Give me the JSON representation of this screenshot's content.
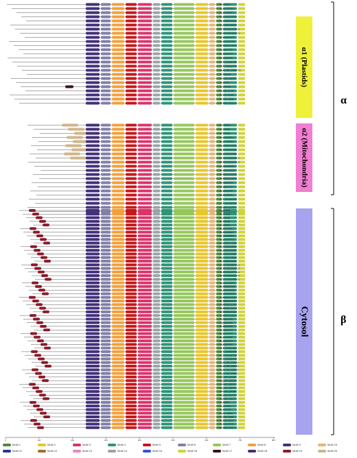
{
  "groups": [
    {
      "key": "plastids",
      "label": "α1 (Plastids)",
      "box_color": "#eef03a",
      "genes": [
        "At5G22510",
        "Eucgr.G02708.1",
        "Eucgr.J00957.1",
        "Potri.010G230100",
        "Potri.008G031100",
        "Potri.004G199000",
        "GSVIVT01014720001",
        "GSVIVT01021374001",
        "Solyc11g007270",
        "Solyc11g067050",
        "GRMZM2G044945",
        "Sb09g027050",
        "Bradi3g56070",
        "Bradi3g56080",
        "LOC_Os02g22490",
        "LOC_Os02g22730",
        "Traes_2BL_D48EFA3C",
        "AT5G68940",
        "AtB_a05_g06906",
        "Smo97907",
        "Smo419962",
        "Pp3c18_27190",
        "Pp3c17_10260",
        "Pp3c16_18080",
        "MN5955_0126_v1.1"
      ]
    },
    {
      "key": "mitochondria",
      "label": "α2 (Mitochondria)",
      "box_color": "#f07ed2",
      "genes": [
        "At5G09590",
        "At1G36060",
        "At3G05880",
        "Eucgr.B03889.1",
        "Eucgr.H02058.1",
        "Potri.006G101600",
        "Potri.013G006900",
        "Potri.018G128300",
        "GSVIVT01020494001",
        "GSVIVT01031247001",
        "Solyc04g005410",
        "Solyc01g100610",
        "GRMZM2G022782",
        "GRMZM2G000433",
        "Sb03g002610",
        "Sb01g037120",
        "Bradi2g32430",
        "Bradi1g68150",
        "LOC_Os01g22900",
        "LOC_Os03g54050",
        "AtB_a05_g12347",
        "Traes_2DL_171A4A"
      ]
    },
    {
      "key": "cytosol",
      "label": "Cytosol",
      "box_color": "#a7a3ee",
      "genes": [
        "At4G24690",
        "At1G73530",
        "At1G30650",
        "At1G22450",
        "At4G20010",
        "Eucgr.F01981.1",
        "Eucgr.F03308.1",
        "Eucgr.D02396.1",
        "Eucgr.D01701.1",
        "Potri.005G173000",
        "Potri.005G026600",
        "Potri.002G167800",
        "Potri.006G196800",
        "Potri.013G129000",
        "Potri.019G042500",
        "GSVIVT01008045001",
        "GSVIVT01024496001",
        "GSVIVT01012779001",
        "GSVIVT01012765001",
        "GSVIVT01024349001",
        "Solyc01g111130",
        "Solyc04g081440",
        "Solyc11g020610",
        "Solyc06g068210",
        "GRMZM2G047328",
        "GRMZM2G047377",
        "GRMZM2G115457",
        "GRMZM2G136139",
        "GRMZM2G419111",
        "GRMZM2G118197",
        "Sb09g022060",
        "Sb08g006460",
        "Sb10g005180",
        "Sb07g006770",
        "Bradi3g16570",
        "Bradi1g40580",
        "Bradi4g44470",
        "Bradi3g02860",
        "LOC_Os08g34280",
        "LOC_Os05g04960",
        "LOC_Os11g07140",
        "LOC_Os03g56320",
        "Traes_4BL_9CF6D0",
        "Traes_5DL_ED6A8E",
        "Traes_7AL_AC0E4F",
        "Traes_2AL_F50DA0",
        "AtB_a02_g07406",
        "AtB_a03_g06084",
        "AtB_a04_g09061",
        "AtB_a02_g00647",
        "AtB_a04_g02498",
        "AtB_a02_g01709",
        "AtB_a04_g09076",
        "Smo99904",
        "Smo111360",
        "Smo101284",
        "Pp3c4_10940",
        "Pp3c13_13910",
        "Pp3c20_25210",
        "Pp3c10_20170",
        "MN5955_0102_v1.1"
      ]
    }
  ],
  "greek_labels": {
    "alpha": "α",
    "beta": "β"
  },
  "axis": {
    "ticks": [
      "0",
      "100",
      "200",
      "300",
      "400",
      "500",
      "600",
      "700",
      "800"
    ]
  },
  "motifs": [
    {
      "name": "Motif 1",
      "color": "#4e8a3b"
    },
    {
      "name": "Motif 2",
      "color": "#e9c62a"
    },
    {
      "name": "Motif 3",
      "color": "#d9356c"
    },
    {
      "name": "Motif 4",
      "color": "#2e9478"
    },
    {
      "name": "Motif 5",
      "color": "#c7171a"
    },
    {
      "name": "Motif 6",
      "color": "#7f7fa8"
    },
    {
      "name": "Motif 7",
      "color": "#96c75c"
    },
    {
      "name": "Motif 8",
      "color": "#f2a03c"
    },
    {
      "name": "Motif 9",
      "color": "#42307a"
    },
    {
      "name": "Motif 10",
      "color": "#e6b378"
    },
    {
      "name": "Motif 11",
      "color": "#1f3b8a"
    },
    {
      "name": "Motif 12",
      "color": "#a86a32"
    },
    {
      "name": "Motif 13",
      "color": "#e48ab8"
    },
    {
      "name": "Motif 14",
      "color": "#99a3a8"
    },
    {
      "name": "Motif 15",
      "color": "#2b56d6"
    },
    {
      "name": "Motif 16",
      "color": "#cfd33a"
    },
    {
      "name": "Motif 17",
      "color": "#3a1216"
    },
    {
      "name": "Motif 18",
      "color": "#4a2c72"
    },
    {
      "name": "Motif 19",
      "color": "#8b1a2a"
    },
    {
      "name": "Motif 20",
      "color": "#d0b58a"
    }
  ]
}
